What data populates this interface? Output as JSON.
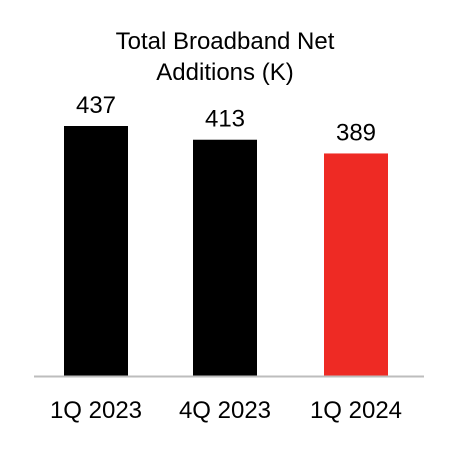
{
  "chart_data": {
    "type": "bar",
    "title_lines": [
      "Total Broadband Net",
      "Additions (K)"
    ],
    "categories": [
      "1Q 2023",
      "4Q 2023",
      "1Q 2024"
    ],
    "values": [
      437,
      413,
      389
    ],
    "data_labels": [
      "437",
      "413",
      "389"
    ],
    "bar_colors": [
      "#000000",
      "#000000",
      "#ee2a24"
    ],
    "axis_color": "#bdbdbd",
    "ylim": [
      0,
      437
    ],
    "grid": false,
    "legend": "none"
  }
}
